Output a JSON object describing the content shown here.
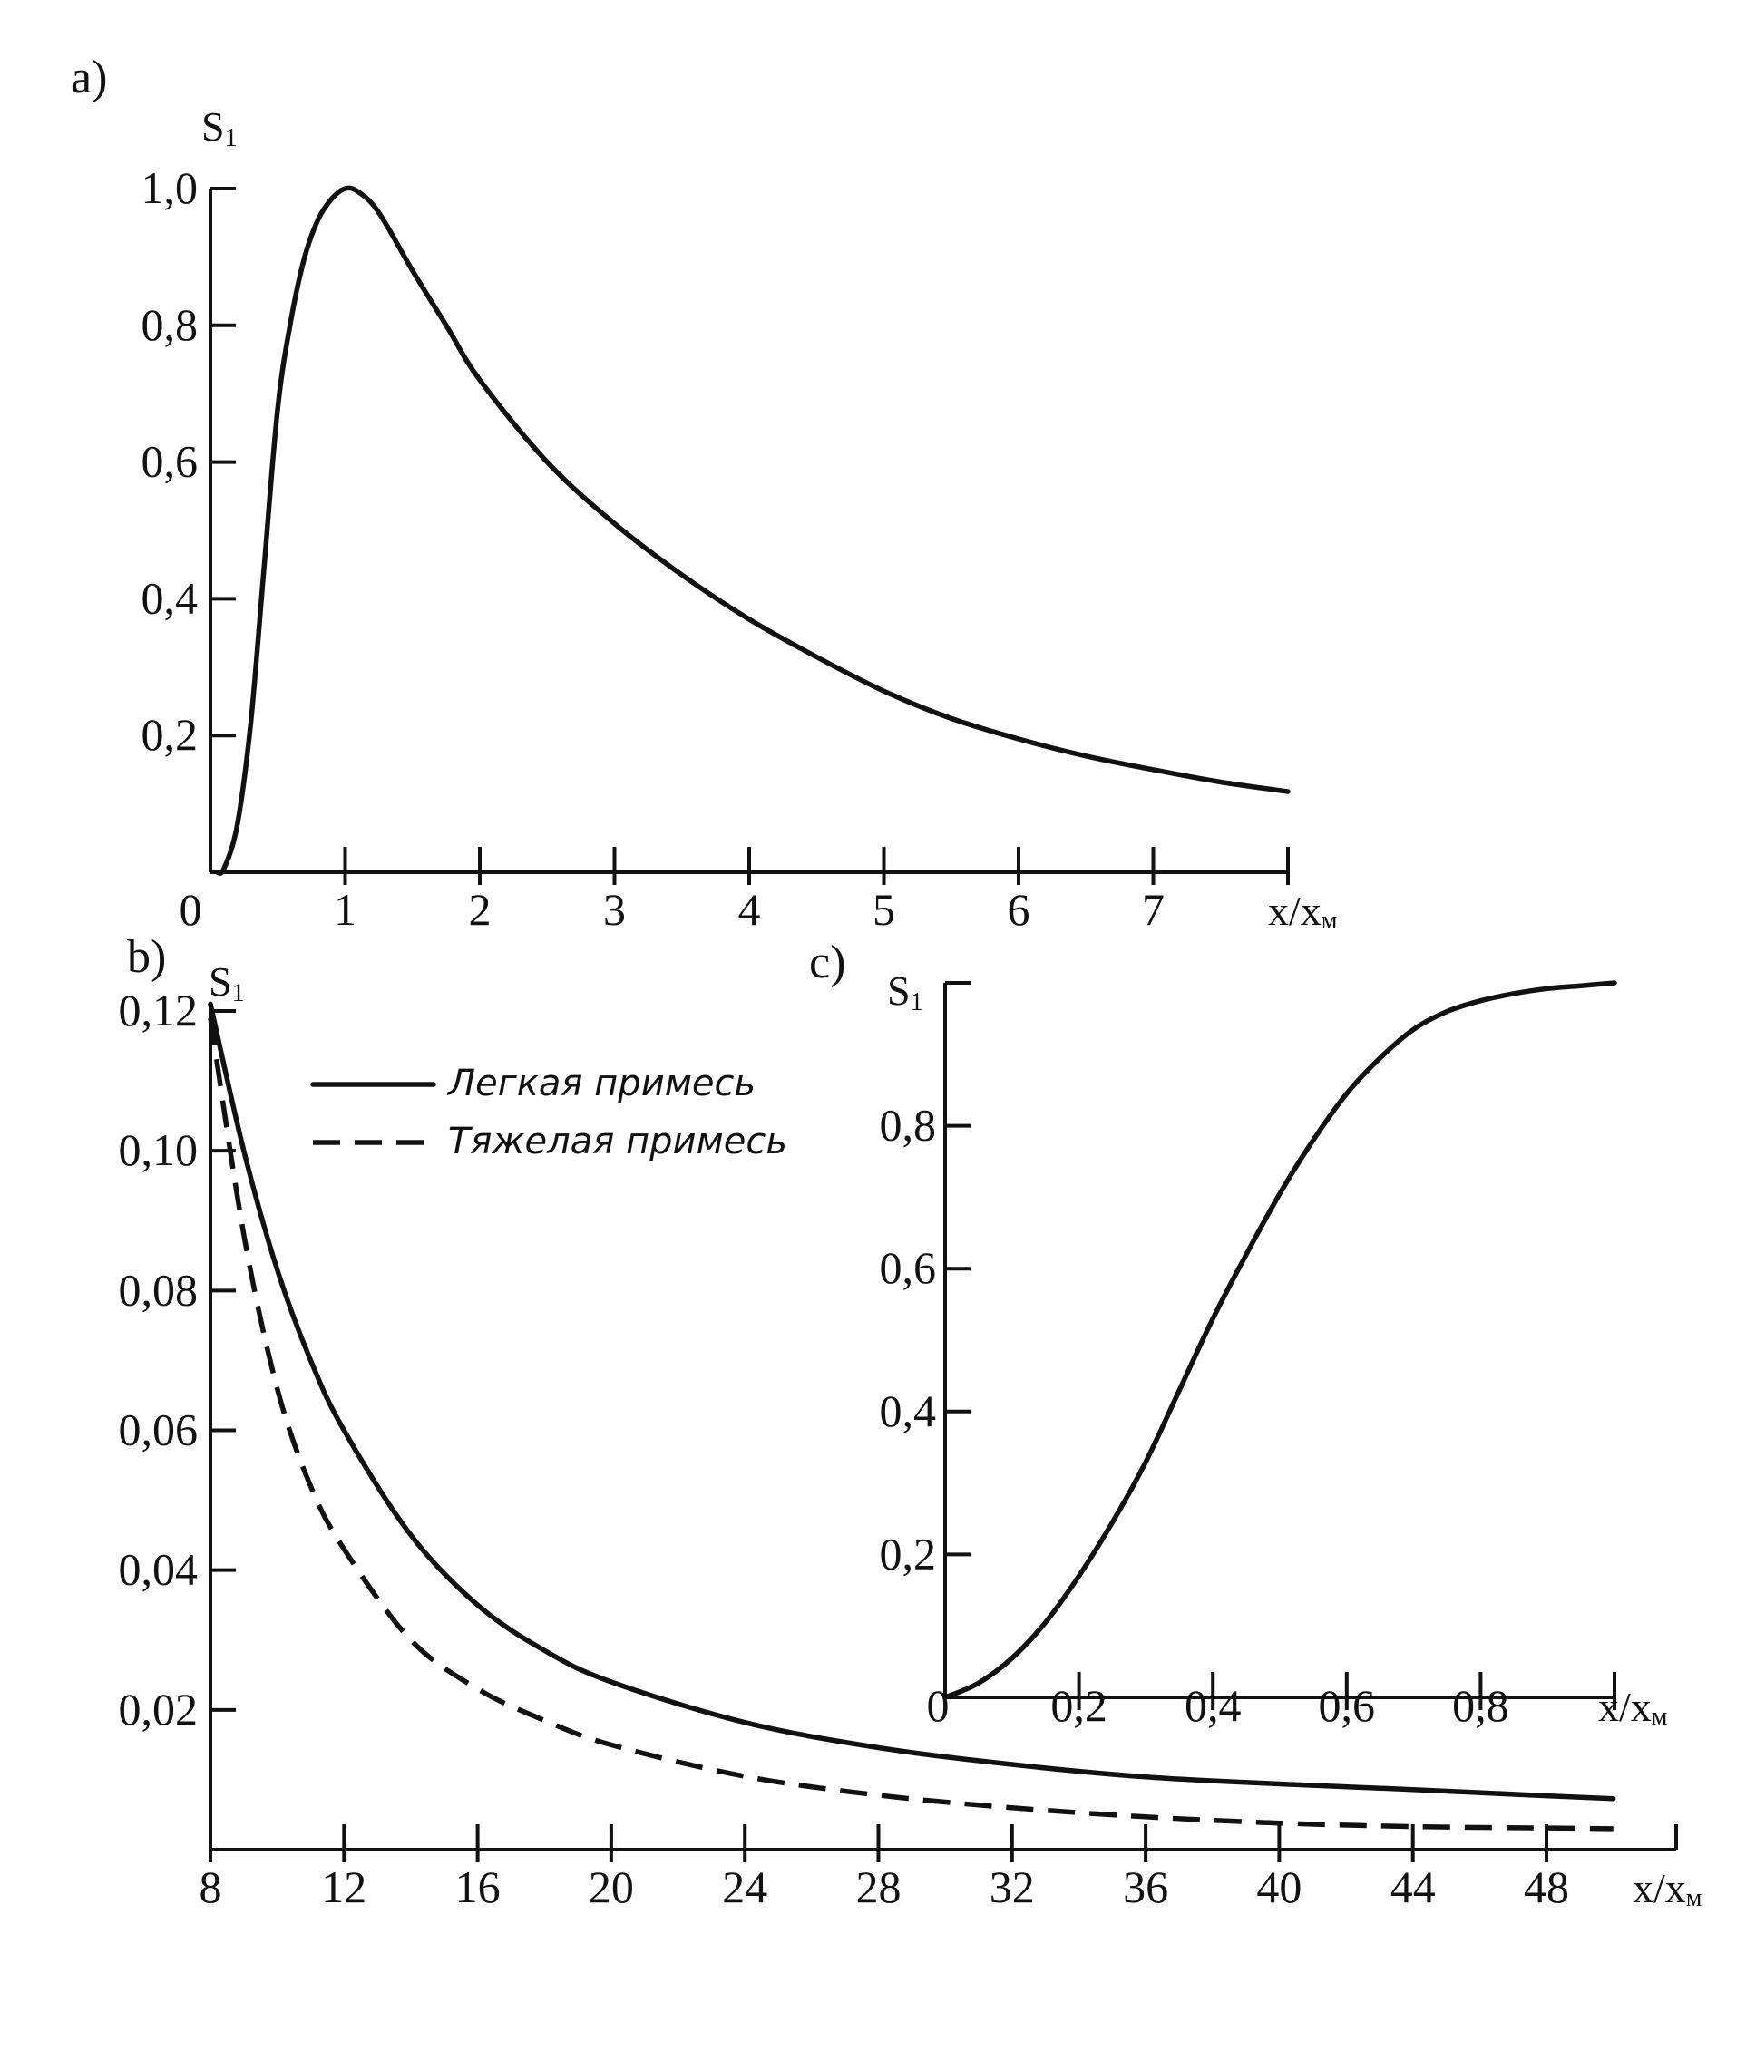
{
  "chart_data": [
    {
      "id": "a",
      "panel_label": "a)",
      "type": "line",
      "ylabel": "S",
      "ylabel_sub": "1",
      "xlabel": "x/x",
      "xlabel_sub": "м",
      "xlim": [
        0,
        8
      ],
      "ylim": [
        0,
        1.0
      ],
      "x_ticks": [
        0,
        1,
        2,
        3,
        4,
        5,
        6,
        7,
        8
      ],
      "x_tick_labels": [
        "0",
        "1",
        "2",
        "3",
        "4",
        "5",
        "6",
        "7"
      ],
      "y_ticks": [
        0.2,
        0.4,
        0.6,
        0.8,
        1.0
      ],
      "y_tick_labels": [
        "0,2",
        "0,4",
        "0,6",
        "0,8",
        "1,0"
      ],
      "grid": false,
      "series": [
        {
          "style": "solid",
          "x": [
            0.05,
            0.1,
            0.2,
            0.3,
            0.4,
            0.5,
            0.6,
            0.7,
            0.8,
            0.9,
            1.0,
            1.1,
            1.25,
            1.5,
            1.75,
            2.0,
            2.5,
            3.0,
            3.5,
            4.0,
            4.5,
            5.0,
            5.5,
            6.0,
            6.5,
            7.0,
            7.5,
            8.0
          ],
          "y": [
            0.0,
            0.005,
            0.07,
            0.22,
            0.45,
            0.68,
            0.81,
            0.9,
            0.955,
            0.985,
            1.0,
            0.995,
            0.965,
            0.88,
            0.8,
            0.72,
            0.6,
            0.51,
            0.435,
            0.37,
            0.315,
            0.265,
            0.225,
            0.195,
            0.17,
            0.15,
            0.132,
            0.118
          ]
        }
      ]
    },
    {
      "id": "b",
      "panel_label": "b)",
      "type": "line",
      "ylabel": "S",
      "ylabel_sub": "1",
      "xlabel": "x/x",
      "xlabel_sub": "м",
      "xlim": [
        8,
        50
      ],
      "ylim": [
        0,
        0.12
      ],
      "x_ticks": [
        8,
        12,
        16,
        20,
        24,
        28,
        32,
        36,
        40,
        44,
        48
      ],
      "x_tick_labels": [
        "8",
        "12",
        "16",
        "20",
        "24",
        "28",
        "32",
        "36",
        "40",
        "44",
        "48"
      ],
      "y_ticks": [
        0.02,
        0.04,
        0.06,
        0.08,
        0.1,
        0.12
      ],
      "y_tick_labels": [
        "0,02",
        "0,04",
        "0,06",
        "0,08",
        "0,10",
        "0,12"
      ],
      "grid": false,
      "legend": {
        "placement": "top-center"
      },
      "series": [
        {
          "name": "Легкая примесь",
          "style": "solid",
          "x": [
            8,
            9,
            10,
            11,
            12,
            14,
            16,
            18,
            20,
            24,
            28,
            32,
            36,
            40,
            44,
            48,
            50
          ],
          "y": [
            0.121,
            0.1,
            0.083,
            0.07,
            0.06,
            0.045,
            0.035,
            0.0285,
            0.024,
            0.0182,
            0.0146,
            0.0122,
            0.0104,
            0.0094,
            0.0086,
            0.0077,
            0.0073
          ]
        },
        {
          "name": "Тяжелая примесь",
          "style": "dashed",
          "x": [
            8,
            9,
            10,
            11,
            12,
            14,
            16,
            18,
            20,
            24,
            28,
            32,
            36,
            40,
            44,
            48,
            50
          ],
          "y": [
            0.119,
            0.088,
            0.066,
            0.052,
            0.043,
            0.03,
            0.023,
            0.0185,
            0.015,
            0.0105,
            0.0078,
            0.006,
            0.0047,
            0.0038,
            0.0033,
            0.0031,
            0.003
          ]
        }
      ]
    },
    {
      "id": "c",
      "panel_label": "c)",
      "type": "line",
      "ylabel": "S",
      "ylabel_sub": "1",
      "xlabel": "x/x",
      "xlabel_sub": "м",
      "xlim": [
        0,
        1.0
      ],
      "ylim": [
        0,
        1.0
      ],
      "x_ticks": [
        0,
        0.2,
        0.4,
        0.6,
        0.8,
        1.0
      ],
      "x_tick_labels": [
        "0",
        "0,2",
        "0,4",
        "0,6",
        "0,8"
      ],
      "y_ticks": [
        0.2,
        0.4,
        0.6,
        0.8,
        1.0
      ],
      "y_tick_labels": [
        "0,2",
        "0,4",
        "0,6",
        "0,8"
      ],
      "grid": false,
      "series": [
        {
          "style": "solid",
          "x": [
            0.0,
            0.05,
            0.1,
            0.15,
            0.2,
            0.25,
            0.3,
            0.35,
            0.4,
            0.45,
            0.5,
            0.55,
            0.6,
            0.65,
            0.7,
            0.75,
            0.8,
            0.85,
            0.9,
            0.95,
            1.0
          ],
          "y": [
            0.0,
            0.02,
            0.055,
            0.105,
            0.17,
            0.245,
            0.33,
            0.43,
            0.53,
            0.62,
            0.705,
            0.78,
            0.845,
            0.895,
            0.935,
            0.96,
            0.975,
            0.985,
            0.992,
            0.996,
            1.0
          ]
        }
      ]
    }
  ]
}
